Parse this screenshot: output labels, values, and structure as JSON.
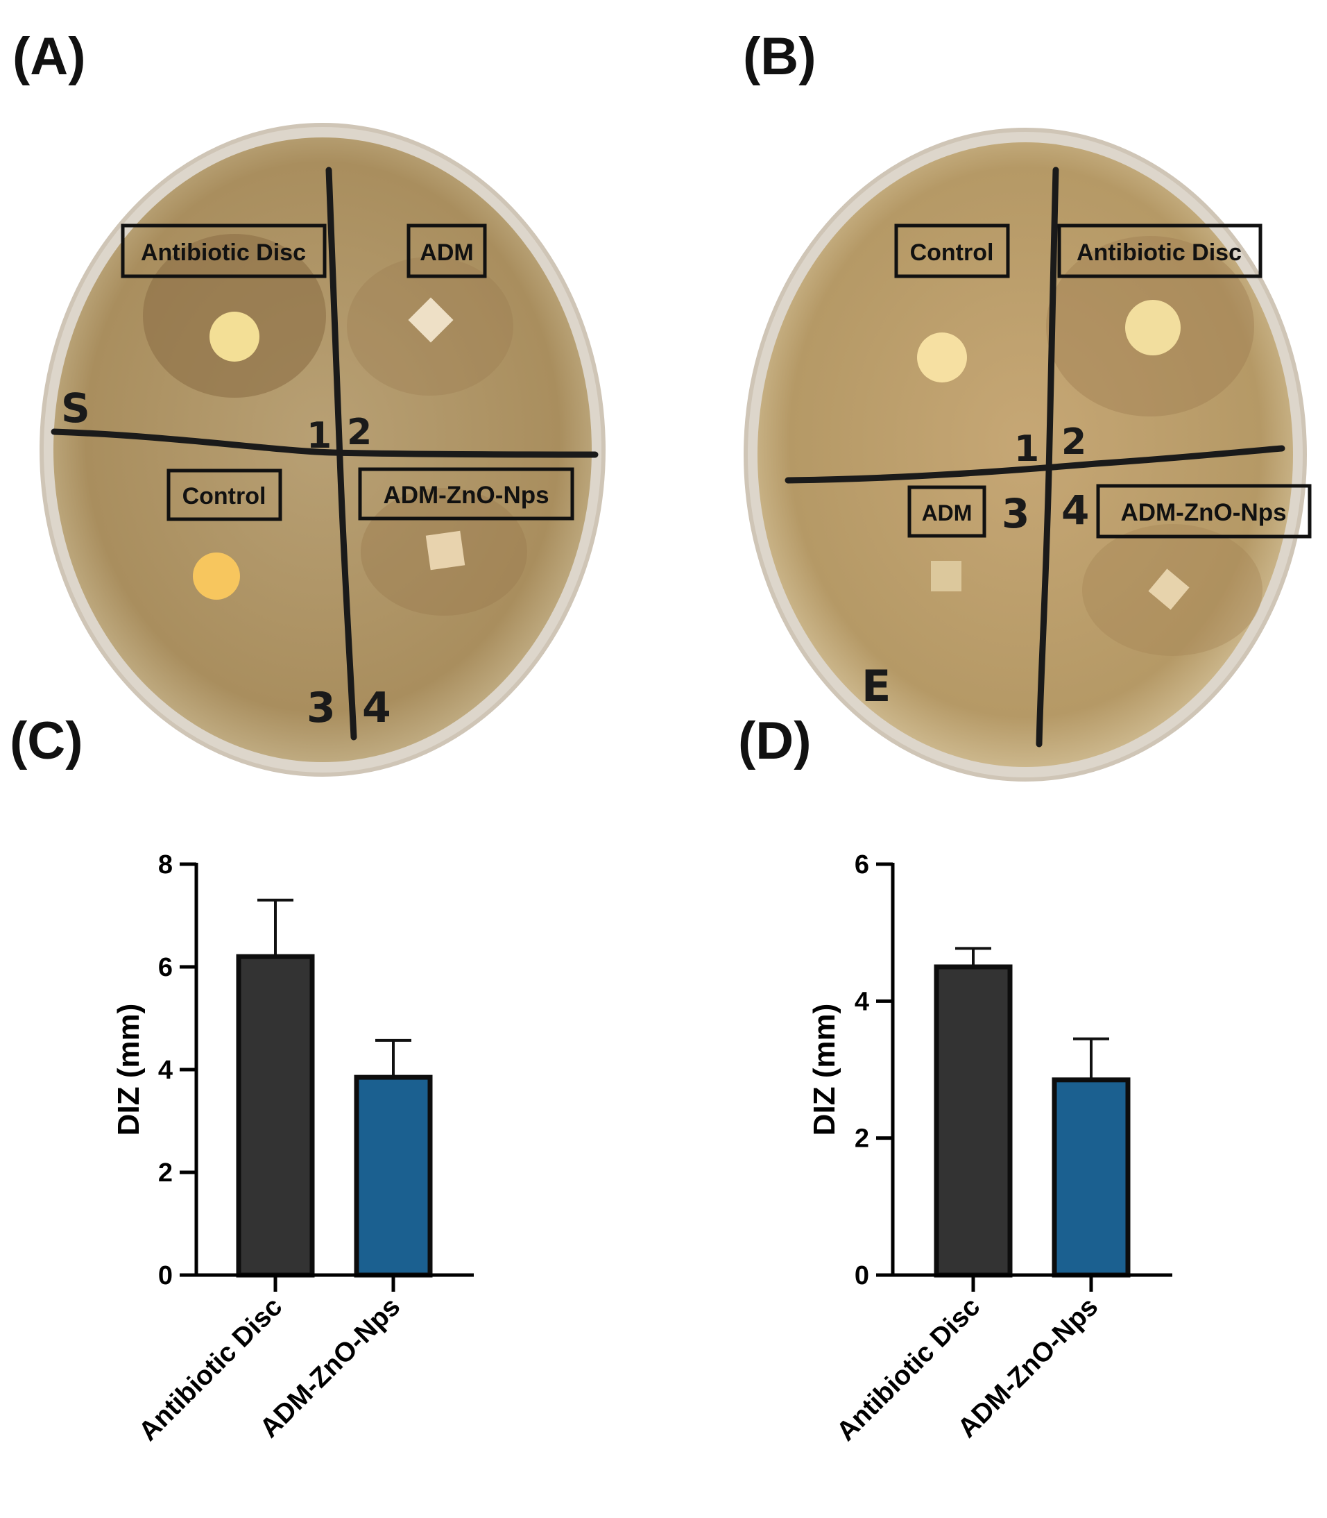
{
  "panels": {
    "a": "(A)",
    "b": "(B)",
    "c": "(C)",
    "d": "(D)"
  },
  "plate_a": {
    "labels": {
      "top_left": "Antibiotic Disc",
      "top_right": "ADM",
      "bottom_left": "Control",
      "bottom_right": "ADM-ZnO-Nps"
    },
    "handwriting": {
      "q1": "1",
      "q2": "2",
      "q3": "3",
      "q4": "4",
      "mark": "S"
    }
  },
  "plate_b": {
    "labels": {
      "top_left": "Control",
      "top_right": "Antibiotic Disc",
      "bottom_left": "ADM",
      "bottom_right": "ADM-ZnO-Nps"
    },
    "handwriting": {
      "q1": "1",
      "q2": "2",
      "q3": "3",
      "q4": "4",
      "mark": "E"
    }
  },
  "colors": {
    "agar": "#b49868",
    "bar_antibiotic": "#333333",
    "bar_adm_zno": "#1b6090"
  },
  "chart_data": [
    {
      "panel": "(C)",
      "type": "bar",
      "categories": [
        "Antibiotic Disc",
        "ADM-ZnO-Nps"
      ],
      "values": [
        6.2,
        3.85
      ],
      "errors": [
        1.1,
        0.72
      ],
      "ylabel": "DIZ (mm)",
      "ylim": [
        0,
        8
      ],
      "yticks": [
        0,
        2,
        4,
        6,
        8
      ]
    },
    {
      "panel": "(D)",
      "type": "bar",
      "categories": [
        "Antibiotic Disc",
        "ADM-ZnO-Nps"
      ],
      "values": [
        4.5,
        2.85
      ],
      "errors": [
        0.27,
        0.6
      ],
      "ylabel": "DIZ (mm)",
      "ylim": [
        0,
        6
      ],
      "yticks": [
        0,
        2,
        4,
        6
      ]
    }
  ]
}
